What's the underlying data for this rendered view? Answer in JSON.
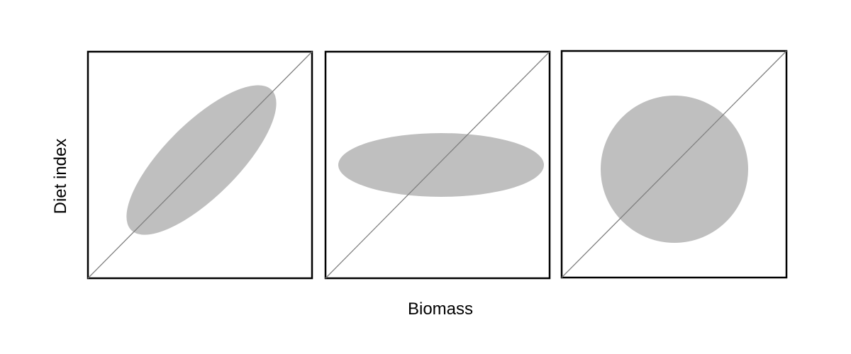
{
  "figure": {
    "xlabel": "Biomass",
    "ylabel": "Diet index",
    "colors": {
      "frame": "#000000",
      "diagonal": "#7f7f7f",
      "blob_fill": "#bfbfbf",
      "background": "#ffffff"
    },
    "panels": [
      {
        "shape": "elongated-ellipse-along-diagonal"
      },
      {
        "shape": "horizontal-ellipse"
      },
      {
        "shape": "circle"
      }
    ]
  }
}
